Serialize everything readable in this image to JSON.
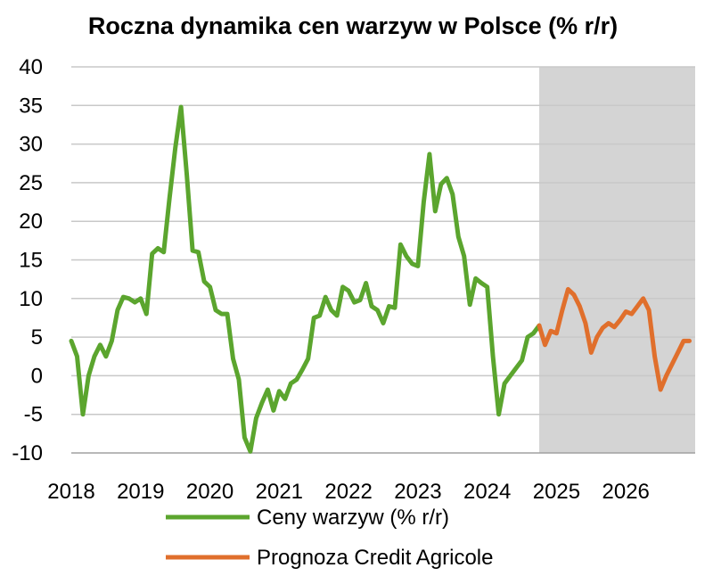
{
  "chart_data": {
    "type": "line",
    "title": "Roczna dynamika cen warzyw w Polsce (% r/r)",
    "xlabel": "",
    "ylabel": "",
    "ylim": [
      -10,
      40
    ],
    "yticks": [
      -10,
      -5,
      0,
      5,
      10,
      15,
      20,
      25,
      30,
      35,
      40
    ],
    "xlim": [
      2018.0,
      2027.0
    ],
    "xtick_labels": [
      "2018",
      "2019",
      "2020",
      "2021",
      "2022",
      "2023",
      "2024",
      "2025",
      "2026"
    ],
    "grid": true,
    "forecast_shaded_from": "2024-10",
    "legend_position": "bottom",
    "colors": {
      "actual": "#5ba52e",
      "forecast": "#e06f2c",
      "shade": "#d4d4d4",
      "grid": "#c8c8c8"
    },
    "series": [
      {
        "name": "Ceny warzyw (% r/r)",
        "x": [
          "2018-01",
          "2018-02",
          "2018-03",
          "2018-04",
          "2018-05",
          "2018-06",
          "2018-07",
          "2018-08",
          "2018-09",
          "2018-10",
          "2018-11",
          "2018-12",
          "2019-01",
          "2019-02",
          "2019-03",
          "2019-04",
          "2019-05",
          "2019-06",
          "2019-07",
          "2019-08",
          "2019-09",
          "2019-10",
          "2019-11",
          "2019-12",
          "2020-01",
          "2020-02",
          "2020-03",
          "2020-04",
          "2020-05",
          "2020-06",
          "2020-07",
          "2020-08",
          "2020-09",
          "2020-10",
          "2020-11",
          "2020-12",
          "2021-01",
          "2021-02",
          "2021-03",
          "2021-04",
          "2021-05",
          "2021-06",
          "2021-07",
          "2021-08",
          "2021-09",
          "2021-10",
          "2021-11",
          "2021-12",
          "2022-01",
          "2022-02",
          "2022-03",
          "2022-04",
          "2022-05",
          "2022-06",
          "2022-07",
          "2022-08",
          "2022-09",
          "2022-10",
          "2022-11",
          "2022-12",
          "2023-01",
          "2023-02",
          "2023-03",
          "2023-04",
          "2023-05",
          "2023-06",
          "2023-07",
          "2023-08",
          "2023-09",
          "2023-10",
          "2023-11",
          "2023-12",
          "2024-01",
          "2024-02",
          "2024-03",
          "2024-04",
          "2024-05",
          "2024-06",
          "2024-07",
          "2024-08",
          "2024-09",
          "2024-10"
        ],
        "values": [
          4.5,
          2.5,
          -5.0,
          0.0,
          2.5,
          4.0,
          2.5,
          4.5,
          8.5,
          10.2,
          10.0,
          9.5,
          10.0,
          8.0,
          15.8,
          16.5,
          16.0,
          23.0,
          29.5,
          34.8,
          26.0,
          16.2,
          16.0,
          12.2,
          11.5,
          8.5,
          8.0,
          8.0,
          2.2,
          -0.5,
          -8.0,
          -9.8,
          -5.5,
          -3.5,
          -1.8,
          -4.5,
          -2.0,
          -3.0,
          -1.0,
          -0.5,
          0.8,
          2.2,
          7.5,
          7.8,
          10.2,
          8.5,
          7.8,
          11.5,
          11.0,
          9.5,
          9.8,
          12.0,
          9.0,
          8.5,
          6.8,
          9.0,
          8.8,
          17.0,
          15.5,
          14.5,
          14.2,
          22.5,
          28.7,
          21.3,
          24.8,
          25.6,
          23.5,
          18.0,
          15.5,
          9.2,
          12.6,
          12.0,
          11.5,
          2.5,
          -5.0,
          -1.0,
          0.0,
          1.0,
          2.0,
          5.0,
          5.5,
          6.5
        ]
      },
      {
        "name": "Prognoza Credit Agricole",
        "x": [
          "2024-10",
          "2024-11",
          "2024-12",
          "2025-01",
          "2025-02",
          "2025-03",
          "2025-04",
          "2025-05",
          "2025-06",
          "2025-07",
          "2025-08",
          "2025-09",
          "2025-10",
          "2025-11",
          "2025-12",
          "2026-01",
          "2026-02",
          "2026-03",
          "2026-04",
          "2026-05",
          "2026-06",
          "2026-07",
          "2026-08",
          "2026-09",
          "2026-10",
          "2026-11",
          "2026-12"
        ],
        "values": [
          6.5,
          4.0,
          5.8,
          5.5,
          8.5,
          11.2,
          10.5,
          9.0,
          6.8,
          3.0,
          5.0,
          6.2,
          6.8,
          6.3,
          7.2,
          8.3,
          8.0,
          9.0,
          10.0,
          8.5,
          2.5,
          -1.8,
          0.0,
          1.5,
          3.0,
          4.5,
          4.5
        ]
      }
    ]
  }
}
